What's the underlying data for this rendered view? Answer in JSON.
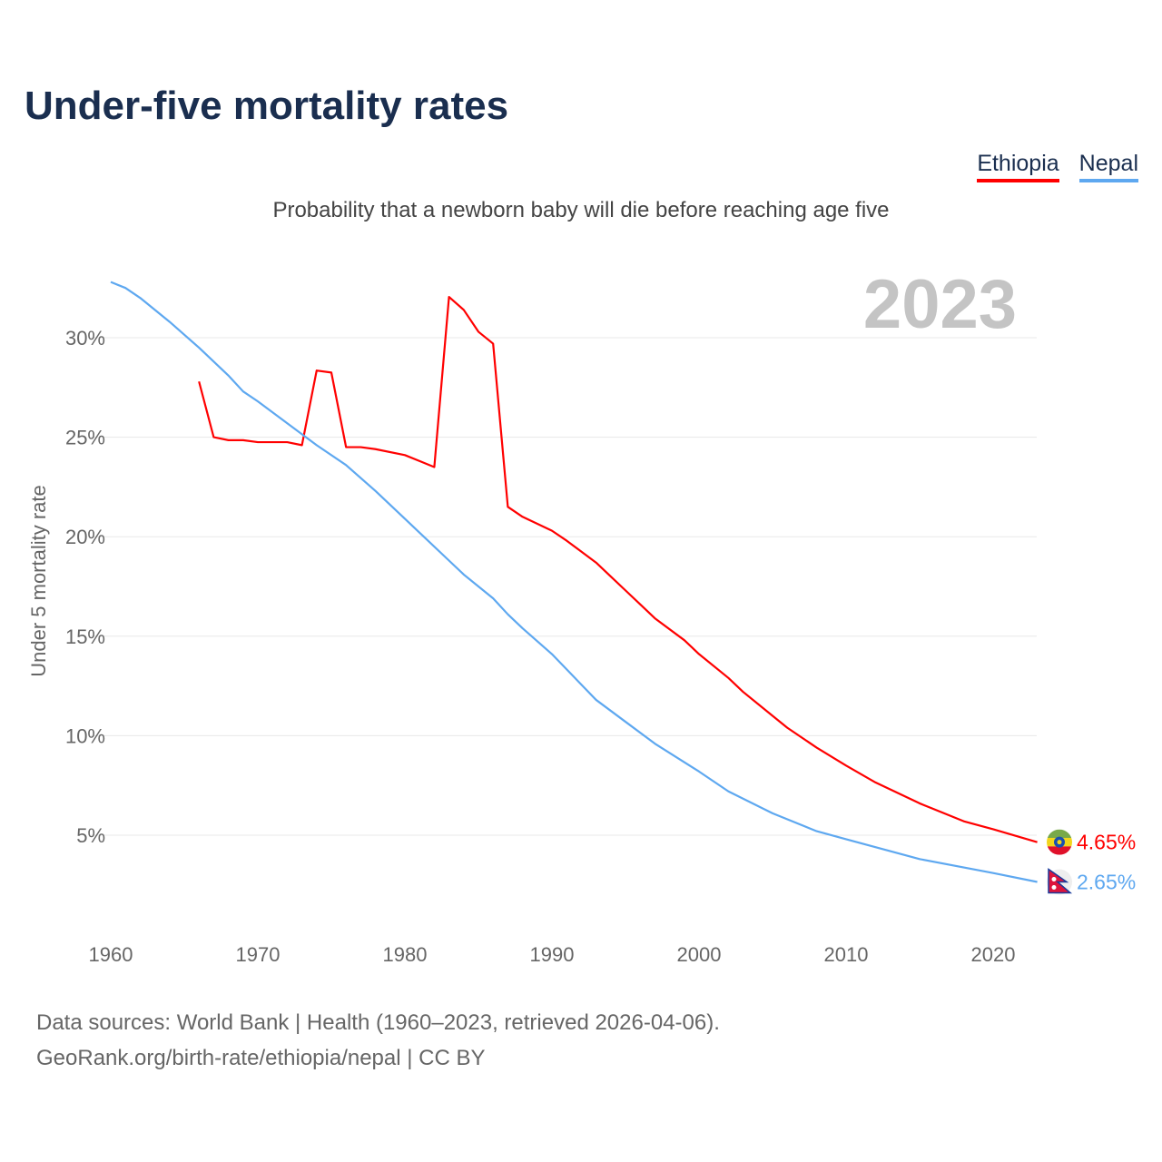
{
  "chart_data": {
    "type": "line",
    "title": "Under-five mortality rates",
    "subtitle": "Probability that a newborn baby will die before reaching age five",
    "ylabel": "Under 5 mortality rate",
    "xlabel": "",
    "year_label": "2023",
    "xlim": [
      1960,
      2023
    ],
    "ylim": [
      0,
      33
    ],
    "xticks": [
      1960,
      1970,
      1980,
      1990,
      2000,
      2010,
      2020
    ],
    "yticks": [
      {
        "v": 5,
        "label": "5%"
      },
      {
        "v": 10,
        "label": "10%"
      },
      {
        "v": 15,
        "label": "15%"
      },
      {
        "v": 20,
        "label": "20%"
      },
      {
        "v": 25,
        "label": "25%"
      },
      {
        "v": 30,
        "label": "30%"
      }
    ],
    "grid": true,
    "legend_position": "top-right",
    "series": [
      {
        "name": "Ethiopia",
        "color": "#ff0000",
        "end_label": "4.65%",
        "flag": "ethiopia",
        "x": [
          1966,
          1967,
          1968,
          1969,
          1970,
          1972,
          1973,
          1974,
          1975,
          1976,
          1977,
          1978,
          1980,
          1981,
          1982,
          1983,
          1984,
          1985,
          1986,
          1987,
          1988,
          1990,
          1991,
          1993,
          1994,
          1995,
          1996,
          1997,
          1999,
          2000,
          2002,
          2003,
          2005,
          2006,
          2008,
          2010,
          2012,
          2015,
          2018,
          2020,
          2023
        ],
        "y": [
          27.8,
          25.0,
          24.85,
          24.85,
          24.75,
          24.75,
          24.6,
          28.35,
          28.25,
          24.5,
          24.5,
          24.4,
          24.1,
          23.8,
          23.5,
          32.05,
          31.4,
          30.3,
          29.7,
          21.5,
          21.0,
          20.3,
          19.8,
          18.7,
          18.0,
          17.3,
          16.6,
          15.9,
          14.8,
          14.1,
          12.9,
          12.2,
          11.0,
          10.4,
          9.4,
          8.5,
          7.65,
          6.6,
          5.7,
          5.3,
          4.65
        ]
      },
      {
        "name": "Nepal",
        "color": "#5ea8f0",
        "end_label": "2.65%",
        "flag": "nepal",
        "x": [
          1960,
          1961,
          1962,
          1964,
          1966,
          1968,
          1969,
          1970,
          1972,
          1974,
          1976,
          1978,
          1980,
          1981,
          1983,
          1984,
          1986,
          1987,
          1988,
          1990,
          1993,
          1995,
          1997,
          2000,
          2002,
          2005,
          2008,
          2010,
          2015,
          2020,
          2023
        ],
        "y": [
          32.8,
          32.5,
          32.0,
          30.8,
          29.5,
          28.1,
          27.3,
          26.8,
          25.7,
          24.6,
          23.6,
          22.3,
          20.9,
          20.2,
          18.8,
          18.1,
          16.9,
          16.1,
          15.4,
          14.1,
          11.8,
          10.7,
          9.6,
          8.2,
          7.2,
          6.1,
          5.2,
          4.8,
          3.8,
          3.1,
          2.65
        ]
      }
    ]
  },
  "source_line1": "Data sources: World Bank | Health (1960–2023, retrieved 2026-04-06).",
  "source_line2": "GeoRank.org/birth-rate/ethiopia/nepal | CC BY"
}
